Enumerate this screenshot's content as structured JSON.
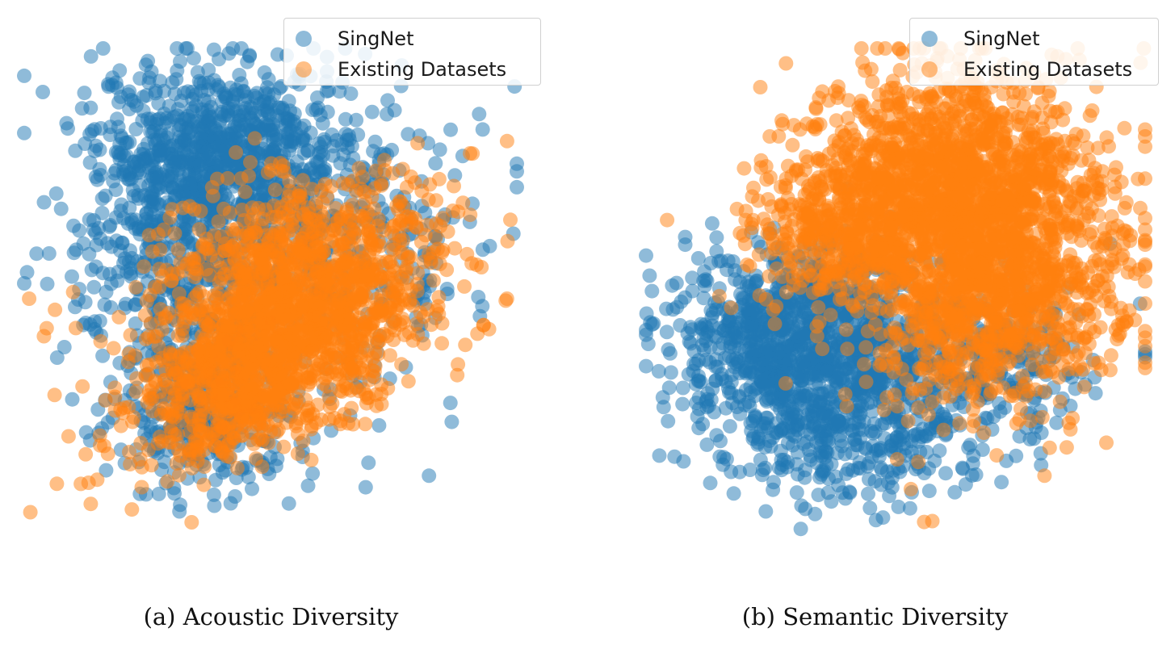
{
  "chart_data": [
    {
      "type": "scatter",
      "caption": "(a) Acoustic Diversity",
      "legend_position": "top-right",
      "grid": false,
      "axes_visible": false,
      "xlim": [
        -1.0,
        1.0
      ],
      "ylim": [
        -1.0,
        1.0
      ],
      "series": [
        {
          "name": "SingNet",
          "color": "#1f77b4",
          "clusters": [
            {
              "cx": -0.2,
              "cy": 0.6,
              "sx": 0.25,
              "sy": 0.17,
              "n": 700
            },
            {
              "cx": -0.38,
              "cy": 0.15,
              "sx": 0.22,
              "sy": 0.28,
              "n": 450
            },
            {
              "cx": -0.25,
              "cy": -0.45,
              "sx": 0.18,
              "sy": 0.15,
              "n": 300
            },
            {
              "cx": 0.2,
              "cy": 0.22,
              "sx": 0.32,
              "sy": 0.32,
              "n": 450
            }
          ],
          "outliers": [
            [
              -0.53,
              0.88
            ],
            [
              -0.87,
              0.42
            ],
            [
              -0.95,
              0.18
            ],
            [
              0.89,
              0.21
            ],
            [
              0.78,
              0.57
            ],
            [
              0.86,
              -0.03
            ],
            [
              -0.37,
              -0.85
            ],
            [
              -0.53,
              -0.78
            ],
            [
              0.53,
              0.85
            ]
          ]
        },
        {
          "name": "Existing Datasets",
          "color": "#ff7f0e",
          "clusters": [
            {
              "cx": 0.05,
              "cy": -0.18,
              "sx": 0.34,
              "sy": 0.17,
              "rot": 0.55,
              "n": 1500
            },
            {
              "cx": 0.05,
              "cy": 0.2,
              "sx": 0.3,
              "sy": 0.16,
              "rot": 0.35,
              "n": 400
            }
          ],
          "outliers": [
            [
              -0.98,
              0.0
            ],
            [
              -0.92,
              -0.15
            ],
            [
              -0.82,
              -0.55
            ],
            [
              -0.77,
              -0.74
            ],
            [
              -0.73,
              -0.82
            ],
            [
              -0.66,
              -0.62
            ],
            [
              0.96,
              0.0
            ],
            [
              0.84,
              -0.14
            ],
            [
              0.82,
              0.58
            ],
            [
              0.56,
              -0.33
            ]
          ]
        }
      ]
    },
    {
      "type": "scatter",
      "caption": "(b) Semantic Diversity",
      "legend_position": "top-right",
      "grid": false,
      "axes_visible": false,
      "xlim": [
        -1.0,
        1.0
      ],
      "ylim": [
        -1.0,
        1.0
      ],
      "series": [
        {
          "name": "SingNet",
          "color": "#1f77b4",
          "clusters": [
            {
              "cx": -0.35,
              "cy": -0.15,
              "sx": 0.26,
              "sy": 0.18,
              "n": 1100
            },
            {
              "cx": -0.2,
              "cy": -0.55,
              "sx": 0.28,
              "sy": 0.14,
              "n": 350
            },
            {
              "cx": 0.35,
              "cy": -0.25,
              "sx": 0.25,
              "sy": 0.14,
              "n": 250
            }
          ],
          "outliers": [
            [
              -0.85,
              -0.65
            ],
            [
              -0.79,
              -0.33
            ],
            [
              -0.52,
              -0.85
            ],
            [
              -0.38,
              -0.92
            ],
            [
              -0.11,
              -0.78
            ],
            [
              0.27,
              -0.68
            ],
            [
              0.98,
              -0.02
            ],
            [
              0.86,
              0.22
            ],
            [
              0.72,
              -0.36
            ]
          ]
        },
        {
          "name": "Existing Datasets",
          "color": "#ff7f0e",
          "clusters": [
            {
              "cx": 0.2,
              "cy": 0.48,
              "sx": 0.3,
              "sy": 0.22,
              "n": 1300
            },
            {
              "cx": 0.38,
              "cy": 0.05,
              "sx": 0.26,
              "sy": 0.25,
              "n": 1200
            },
            {
              "cx": -0.22,
              "cy": 0.28,
              "sx": 0.18,
              "sy": 0.14,
              "n": 350
            }
          ],
          "outliers": [
            [
              0.62,
              0.75
            ],
            [
              0.88,
              0.42
            ],
            [
              0.96,
              0.1
            ],
            [
              0.78,
              -0.12
            ],
            [
              0.0,
              -0.26
            ],
            [
              -0.6,
              0.35
            ]
          ]
        }
      ]
    }
  ]
}
